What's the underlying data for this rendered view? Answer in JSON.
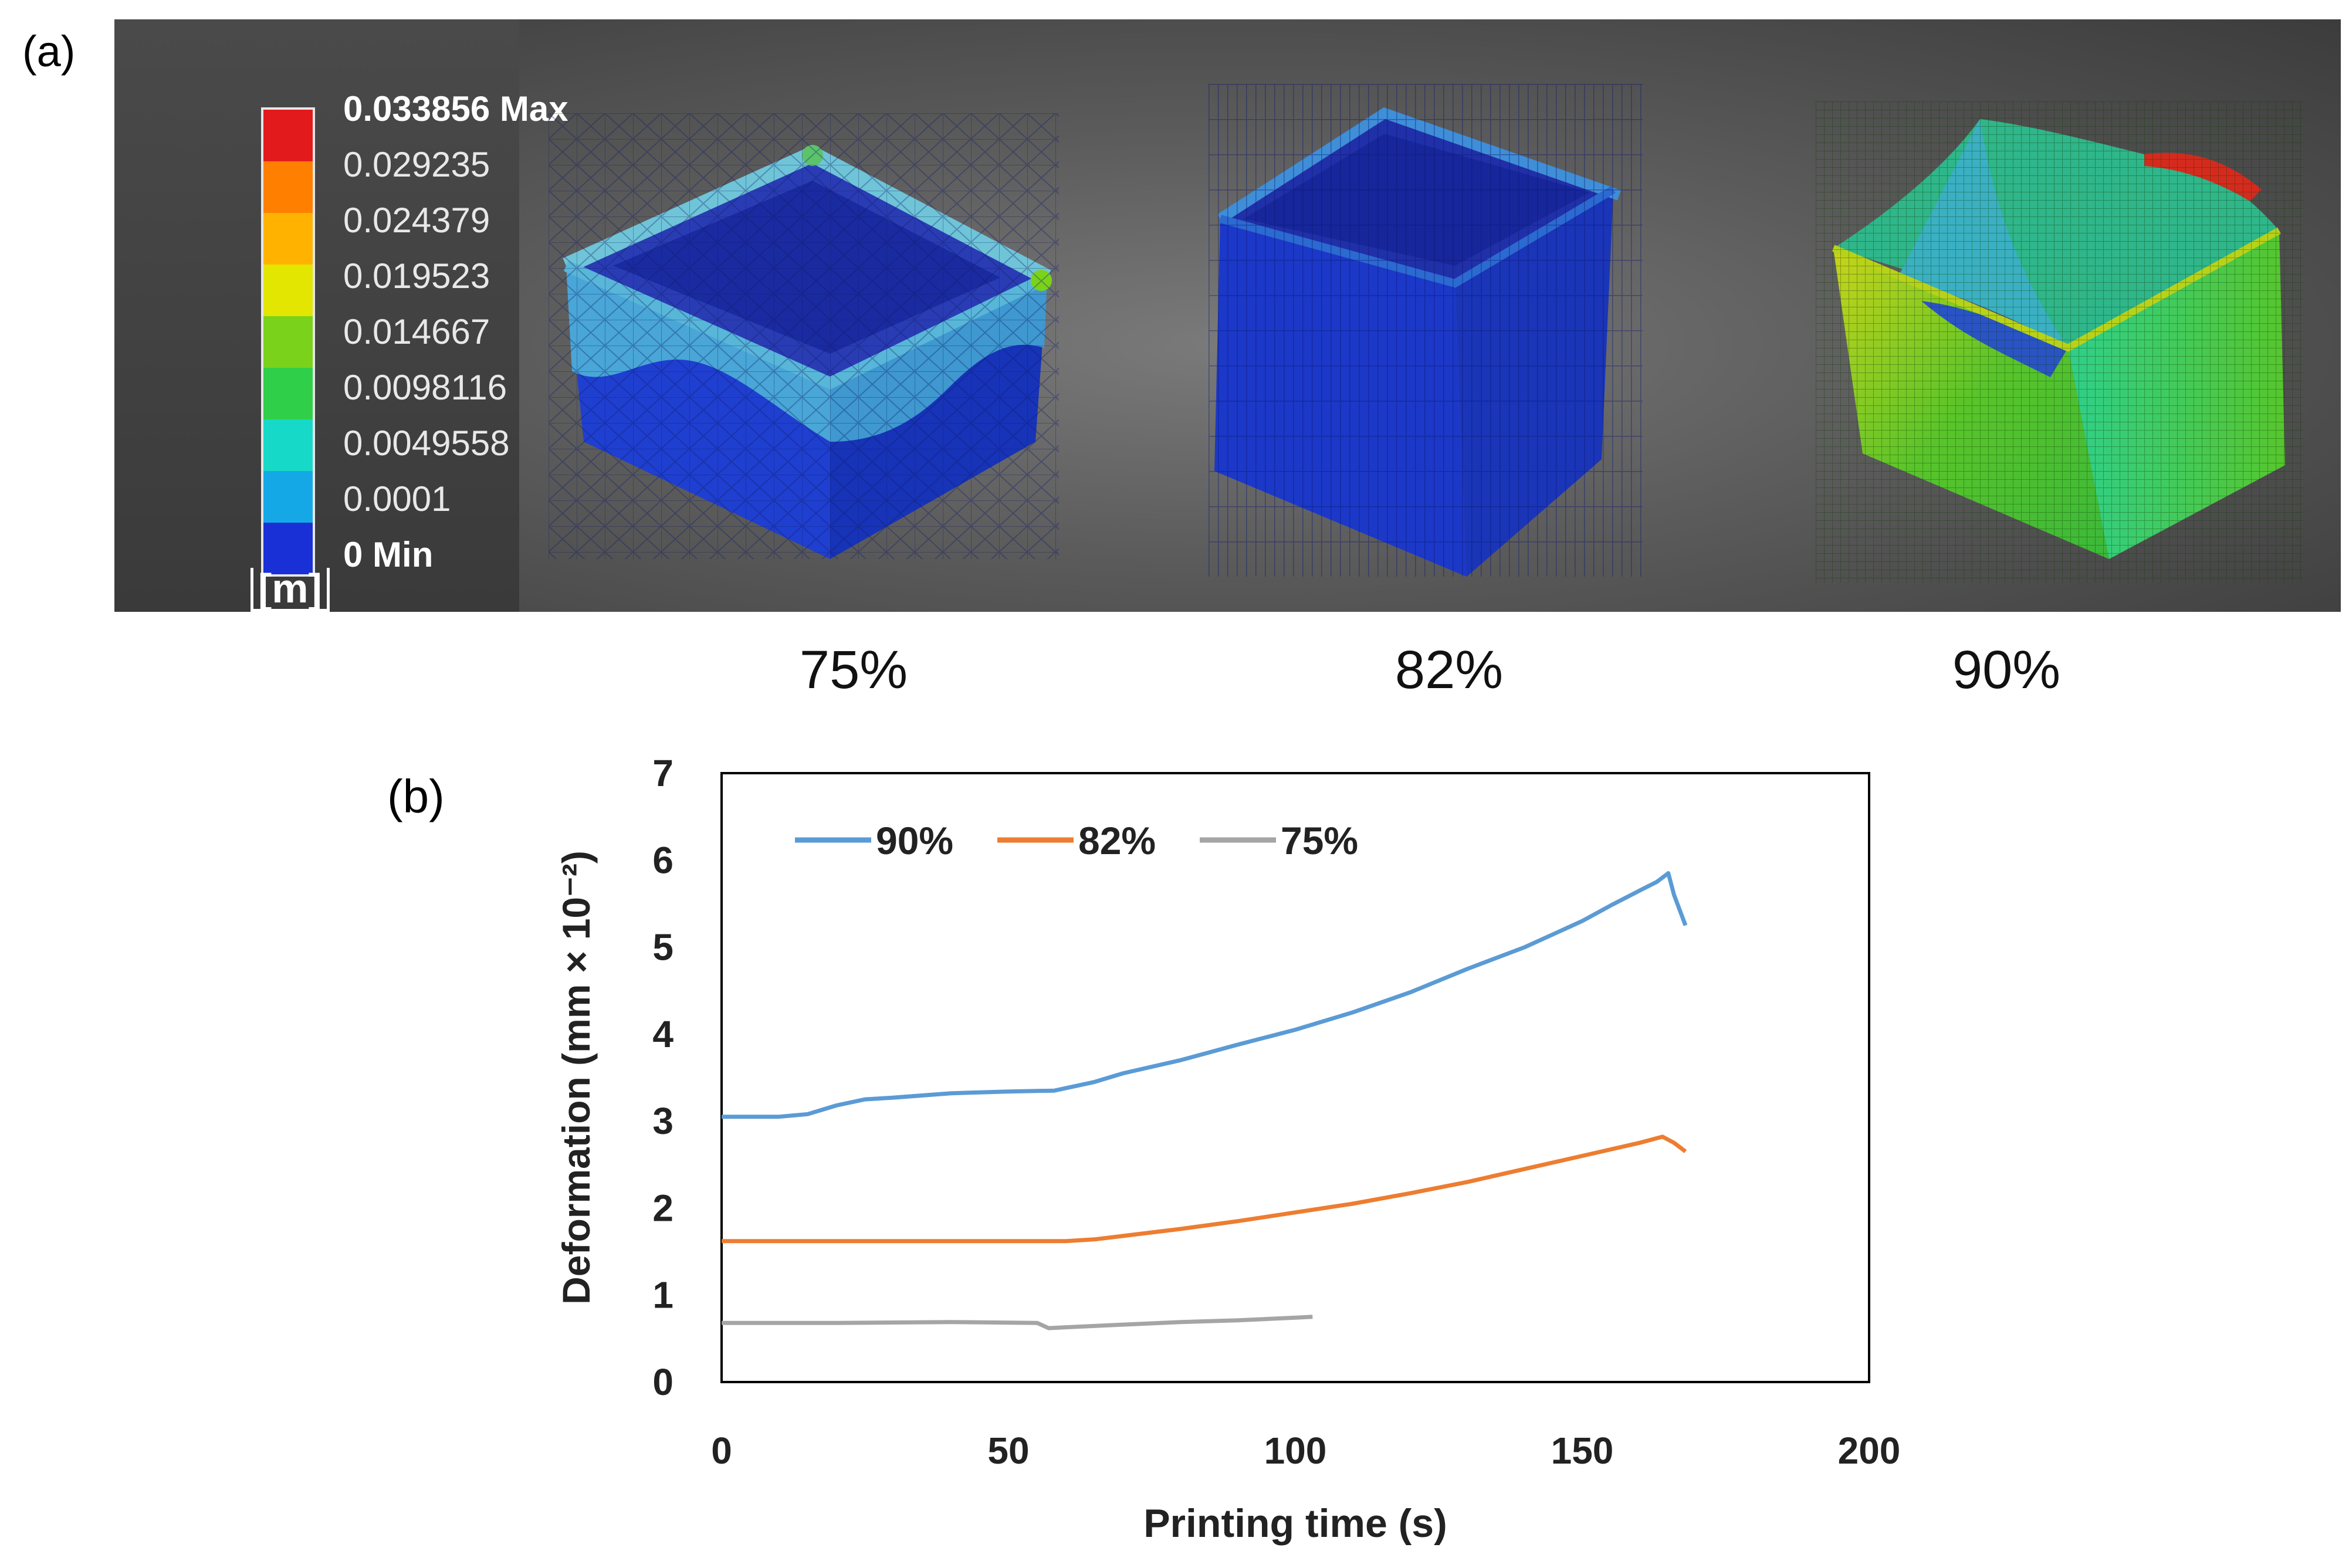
{
  "panel_a": {
    "label": "(a)",
    "unit": "[m]",
    "scale": [
      {
        "text": "0.033856 Max",
        "color": "#e31a1c",
        "bold": true
      },
      {
        "text": "0.029235",
        "color": "#ff7f00",
        "bold": false
      },
      {
        "text": "0.024379",
        "color": "#ffb300",
        "bold": false
      },
      {
        "text": "0.019523",
        "color": "#e3e600",
        "bold": false
      },
      {
        "text": "0.014667",
        "color": "#7bd21a",
        "bold": false
      },
      {
        "text": "0.0098116",
        "color": "#2fcf4a",
        "bold": false
      },
      {
        "text": "0.0049558",
        "color": "#17d9c8",
        "bold": false
      },
      {
        "text": "0.0001",
        "color": "#15a8e6",
        "bold": false
      },
      {
        "text": "0 Min",
        "color": "#1930d6",
        "bold": true
      }
    ],
    "models": [
      {
        "label": "75%",
        "image": "deformed-box-75"
      },
      {
        "label": "82%",
        "image": "deformed-box-82"
      },
      {
        "label": "90%",
        "image": "deformed-box-90"
      }
    ]
  },
  "chart_data": {
    "panel_label": "(b)",
    "type": "line",
    "xlabel": "Printing time (s)",
    "ylabel": "Deformation (mm × 10⁻²)",
    "xlim": [
      0,
      200
    ],
    "ylim": [
      0,
      7
    ],
    "xticks": [
      0,
      50,
      100,
      150,
      200
    ],
    "yticks": [
      0,
      1,
      2,
      3,
      4,
      5,
      6,
      7
    ],
    "grid": false,
    "legend_position": "top-left",
    "series": [
      {
        "name": "90%",
        "color": "#5b9bd5",
        "x": [
          0,
          10,
          15,
          20,
          25,
          30,
          40,
          50,
          58,
          65,
          70,
          80,
          90,
          100,
          110,
          120,
          130,
          140,
          150,
          155,
          160,
          163,
          165,
          166,
          168
        ],
        "y": [
          3.05,
          3.05,
          3.08,
          3.18,
          3.25,
          3.27,
          3.32,
          3.34,
          3.35,
          3.45,
          3.55,
          3.7,
          3.88,
          4.05,
          4.25,
          4.48,
          4.75,
          5.0,
          5.3,
          5.48,
          5.65,
          5.75,
          5.85,
          5.6,
          5.25
        ]
      },
      {
        "name": "82%",
        "color": "#ed7d31",
        "x": [
          0,
          20,
          40,
          60,
          65,
          70,
          80,
          90,
          100,
          110,
          120,
          130,
          140,
          150,
          160,
          164,
          166,
          168
        ],
        "y": [
          1.62,
          1.62,
          1.62,
          1.62,
          1.64,
          1.68,
          1.76,
          1.85,
          1.95,
          2.05,
          2.17,
          2.3,
          2.45,
          2.6,
          2.75,
          2.82,
          2.75,
          2.65
        ]
      },
      {
        "name": "75%",
        "color": "#a5a5a5",
        "x": [
          0,
          20,
          40,
          55,
          57,
          60,
          70,
          80,
          90,
          100,
          103
        ],
        "y": [
          0.68,
          0.68,
          0.69,
          0.68,
          0.62,
          0.63,
          0.66,
          0.69,
          0.71,
          0.74,
          0.75
        ]
      }
    ]
  }
}
